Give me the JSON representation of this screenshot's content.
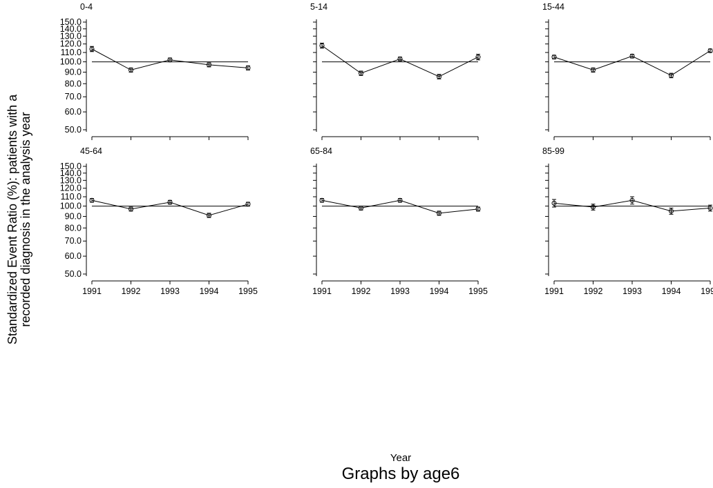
{
  "chart_data": {
    "type": "line",
    "ylabel_lines": [
      "Standardized Event Ratio (%): patients with a",
      "recorded diagnosis in the analysis year"
    ],
    "xlabel": "Year",
    "note": "Graphs by age6",
    "x": [
      1991,
      1992,
      1993,
      1994,
      1995
    ],
    "x_tick_labels": [
      "1991",
      "1992",
      "1993",
      "1994",
      "1995"
    ],
    "y_scale": "log",
    "y_ticks": [
      50,
      60,
      70,
      80,
      90,
      100,
      110,
      120,
      130,
      140,
      150
    ],
    "y_tick_labels": [
      "50.0",
      "60.0",
      "70.0",
      "80.0",
      "90.0",
      "100.0",
      "110.0",
      "120.0",
      "130.0",
      "140.0",
      "150.0"
    ],
    "ylim": [
      50,
      150
    ],
    "reference_line": 100,
    "grid": false,
    "panels": [
      {
        "title": "0-4",
        "values": [
          114,
          92,
          102,
          97,
          94
        ],
        "ci_low": [
          111,
          90,
          100,
          95,
          92
        ],
        "ci_high": [
          117,
          94,
          104,
          99,
          96
        ]
      },
      {
        "title": "5-14",
        "values": [
          118,
          89,
          103,
          86,
          105
        ],
        "ci_low": [
          115,
          87,
          101,
          84,
          102
        ],
        "ci_high": [
          121,
          91,
          105,
          88,
          108
        ]
      },
      {
        "title": "15-44",
        "values": [
          105,
          92,
          106,
          87,
          112
        ],
        "ci_low": [
          103,
          90,
          104,
          85,
          110
        ],
        "ci_high": [
          107,
          94,
          108,
          89,
          114
        ]
      },
      {
        "title": "45-64",
        "values": [
          106,
          97,
          104,
          91,
          102
        ],
        "ci_low": [
          104,
          95,
          102,
          89,
          100
        ],
        "ci_high": [
          108,
          99,
          106,
          93,
          104
        ]
      },
      {
        "title": "65-84",
        "values": [
          106,
          98,
          106,
          93,
          97
        ],
        "ci_low": [
          104,
          96,
          104,
          91,
          95
        ],
        "ci_high": [
          108,
          100,
          108,
          95,
          99
        ]
      },
      {
        "title": "85-99",
        "values": [
          103,
          99,
          106,
          95,
          98
        ],
        "ci_low": [
          99,
          96,
          102,
          92,
          95
        ],
        "ci_high": [
          107,
          102,
          110,
          98,
          101
        ]
      }
    ]
  }
}
